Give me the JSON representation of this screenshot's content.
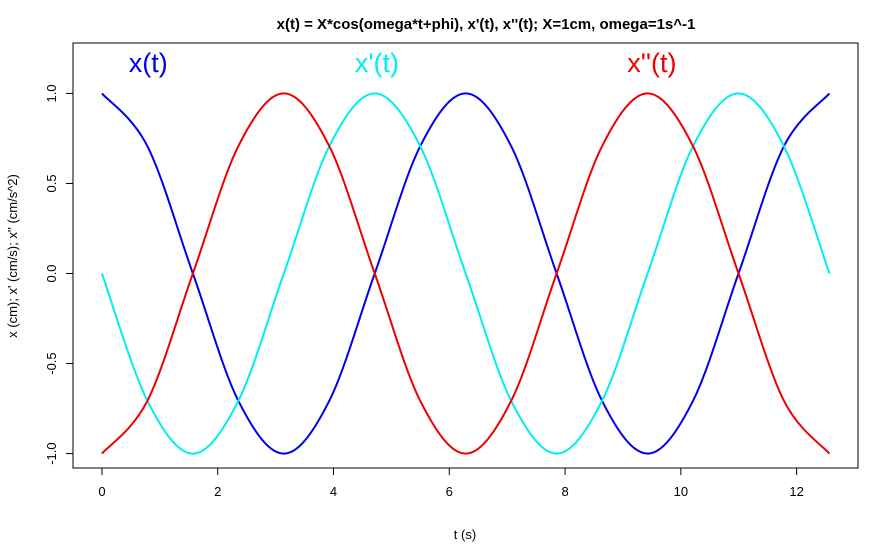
{
  "chart_data": {
    "type": "line",
    "title": "x(t) = X*cos(omega*t+phi),  x'(t),  x''(t);   X=1cm, omega=1s^-1",
    "xlabel": "t  (s)",
    "ylabel": "x (cm);  x' (cm/s);  x'' (cm/s^2)",
    "xlim": [
      -0.5,
      13.06
    ],
    "ylim": [
      -1.08,
      1.28
    ],
    "x_ticks": [
      "0",
      "2",
      "4",
      "6",
      "8",
      "10",
      "12"
    ],
    "x_tick_values": [
      0,
      2,
      4,
      6,
      8,
      10,
      12
    ],
    "y_ticks": [
      "-1.0",
      "-0.5",
      "0.0",
      "0.5",
      "1.0"
    ],
    "y_tick_values": [
      -1.0,
      -0.5,
      0.0,
      0.5,
      1.0
    ],
    "grid": false,
    "x_range": [
      0,
      12.566
    ],
    "series": [
      {
        "name": "x(t)",
        "color": "#0000ee",
        "x": [
          0,
          0.785,
          1.571,
          2.356,
          3.142,
          3.927,
          4.712,
          5.498,
          6.283,
          7.069,
          7.854,
          8.639,
          9.425,
          10.21,
          10.996,
          11.781,
          12.566
        ],
        "y": [
          1.0,
          0.707,
          0.0,
          -0.707,
          -1.0,
          -0.707,
          0.0,
          0.707,
          1.0,
          0.707,
          0.0,
          -0.707,
          -1.0,
          -0.707,
          0.0,
          0.707,
          1.0
        ]
      },
      {
        "name": "x'(t)",
        "color": "#00eeee",
        "x": [
          0,
          0.785,
          1.571,
          2.356,
          3.142,
          3.927,
          4.712,
          5.498,
          6.283,
          7.069,
          7.854,
          8.639,
          9.425,
          10.21,
          10.996,
          11.781,
          12.566
        ],
        "y": [
          0.0,
          -0.707,
          -1.0,
          -0.707,
          0.0,
          0.707,
          1.0,
          0.707,
          0.0,
          -0.707,
          -1.0,
          -0.707,
          0.0,
          0.707,
          1.0,
          0.707,
          0.0
        ]
      },
      {
        "name": "x''(t)",
        "color": "#ee0000",
        "x": [
          0,
          0.785,
          1.571,
          2.356,
          3.142,
          3.927,
          4.712,
          5.498,
          6.283,
          7.069,
          7.854,
          8.639,
          9.425,
          10.21,
          10.996,
          11.781,
          12.566
        ],
        "y": [
          -1.0,
          -0.707,
          0.0,
          0.707,
          1.0,
          0.707,
          0.0,
          -0.707,
          -1.0,
          -0.707,
          0.0,
          0.707,
          1.0,
          0.707,
          0.0,
          -0.707,
          -1.0
        ]
      }
    ],
    "legend_labels": [
      {
        "text": "x(t)",
        "color": "#0000ee",
        "x": 0.8,
        "y": 1.12
      },
      {
        "text": "x'(t)",
        "color": "#00eeee",
        "x": 4.75,
        "y": 1.12
      },
      {
        "text": "x''(t)",
        "color": "#ee0000",
        "x": 9.5,
        "y": 1.12
      }
    ]
  }
}
